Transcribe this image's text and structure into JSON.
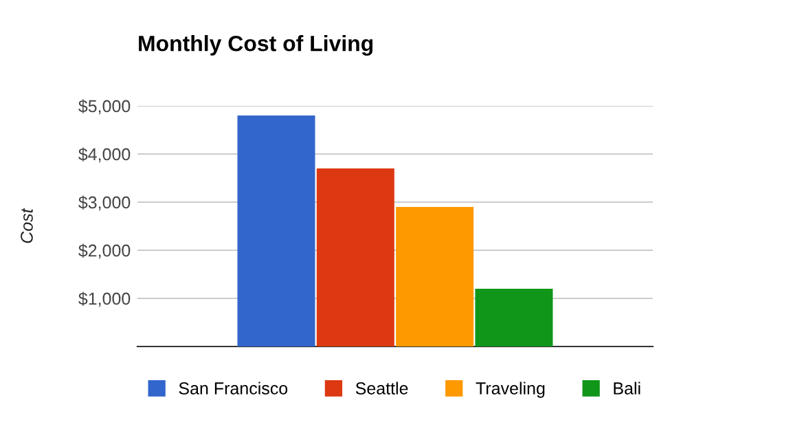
{
  "chart_data": {
    "type": "bar",
    "title": "Monthly Cost of Living",
    "ylabel": "Cost",
    "categories": [
      null
    ],
    "series": [
      {
        "name": "San Francisco",
        "color": "#3366cc",
        "values": [
          4800
        ]
      },
      {
        "name": "Seattle",
        "color": "#dc3912",
        "values": [
          3700
        ]
      },
      {
        "name": "Traveling",
        "color": "#ff9900",
        "values": [
          2900
        ]
      },
      {
        "name": "Bali",
        "color": "#109618",
        "values": [
          1200
        ]
      }
    ],
    "ylim": [
      0,
      5000
    ],
    "yticks": [
      {
        "value": 1000,
        "label": "$1,000"
      },
      {
        "value": 2000,
        "label": "$2,000"
      },
      {
        "value": 3000,
        "label": "$3,000"
      },
      {
        "value": 4000,
        "label": "$4,000"
      },
      {
        "value": 5000,
        "label": "$5,000"
      }
    ],
    "grid": "y",
    "legend": "bottom",
    "tick_labels": "y"
  }
}
